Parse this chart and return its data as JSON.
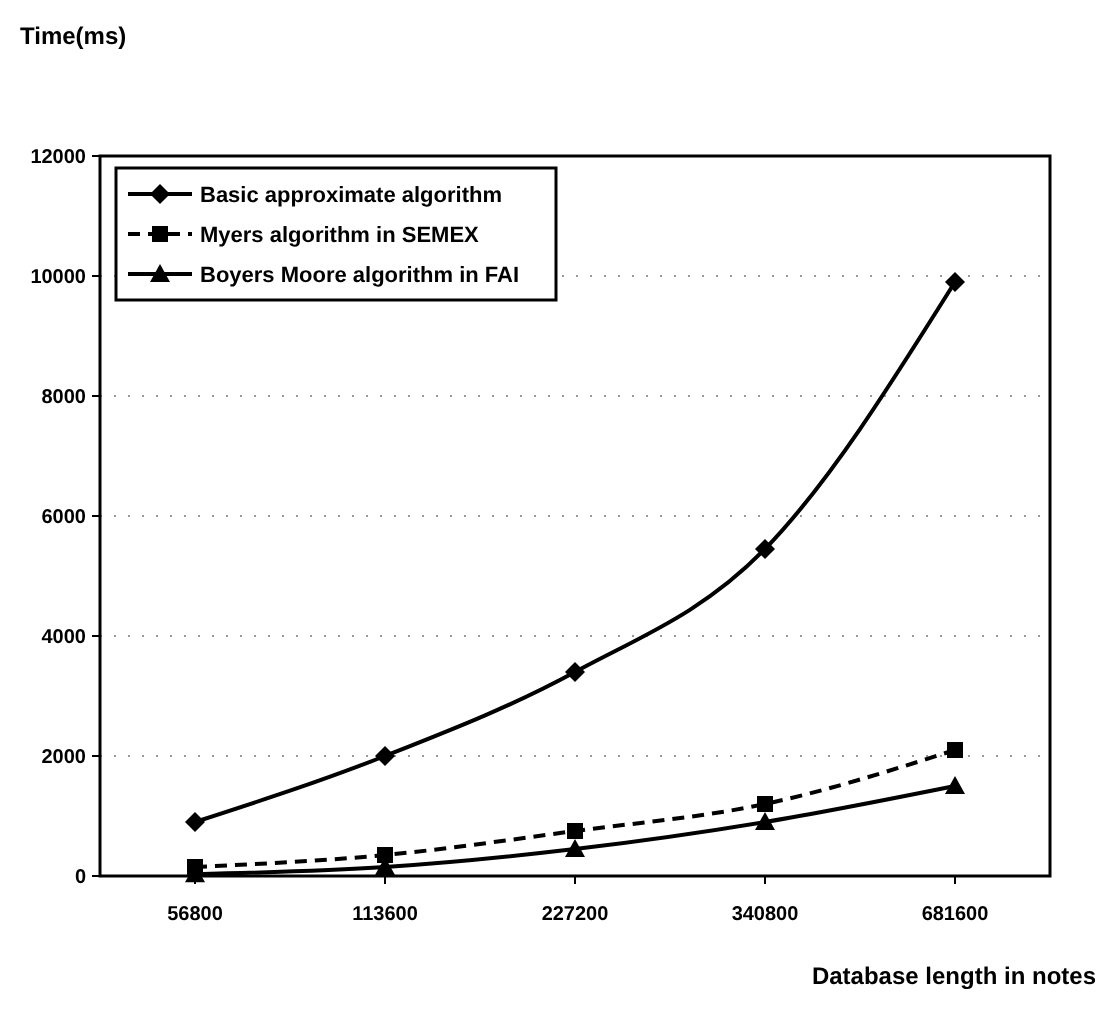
{
  "chart_data": {
    "type": "line",
    "ylabel": "Time(ms)",
    "xlabel": "Database length in notes",
    "categories": [
      "56800",
      "113600",
      "227200",
      "340800",
      "681600"
    ],
    "series": [
      {
        "name": "Basic approximate algorithm",
        "color": "#000000",
        "values": [
          900,
          2000,
          3400,
          5450,
          9900
        ],
        "marker": "diamond",
        "line_style": "solid"
      },
      {
        "name": "Myers algorithm in SEMEX",
        "color": "#000000",
        "values": [
          150,
          350,
          750,
          1200,
          2100
        ],
        "marker": "square",
        "line_style": "dashed"
      },
      {
        "name": "Boyers Moore algorithm in FAI",
        "color": "#000000",
        "values": [
          30,
          150,
          450,
          900,
          1500
        ],
        "marker": "triangle",
        "line_style": "solid"
      }
    ],
    "ylim": [
      0,
      12000
    ],
    "yticks": [
      0,
      2000,
      4000,
      6000,
      8000,
      10000,
      12000
    ],
    "grid": "y",
    "legend": "top left"
  }
}
